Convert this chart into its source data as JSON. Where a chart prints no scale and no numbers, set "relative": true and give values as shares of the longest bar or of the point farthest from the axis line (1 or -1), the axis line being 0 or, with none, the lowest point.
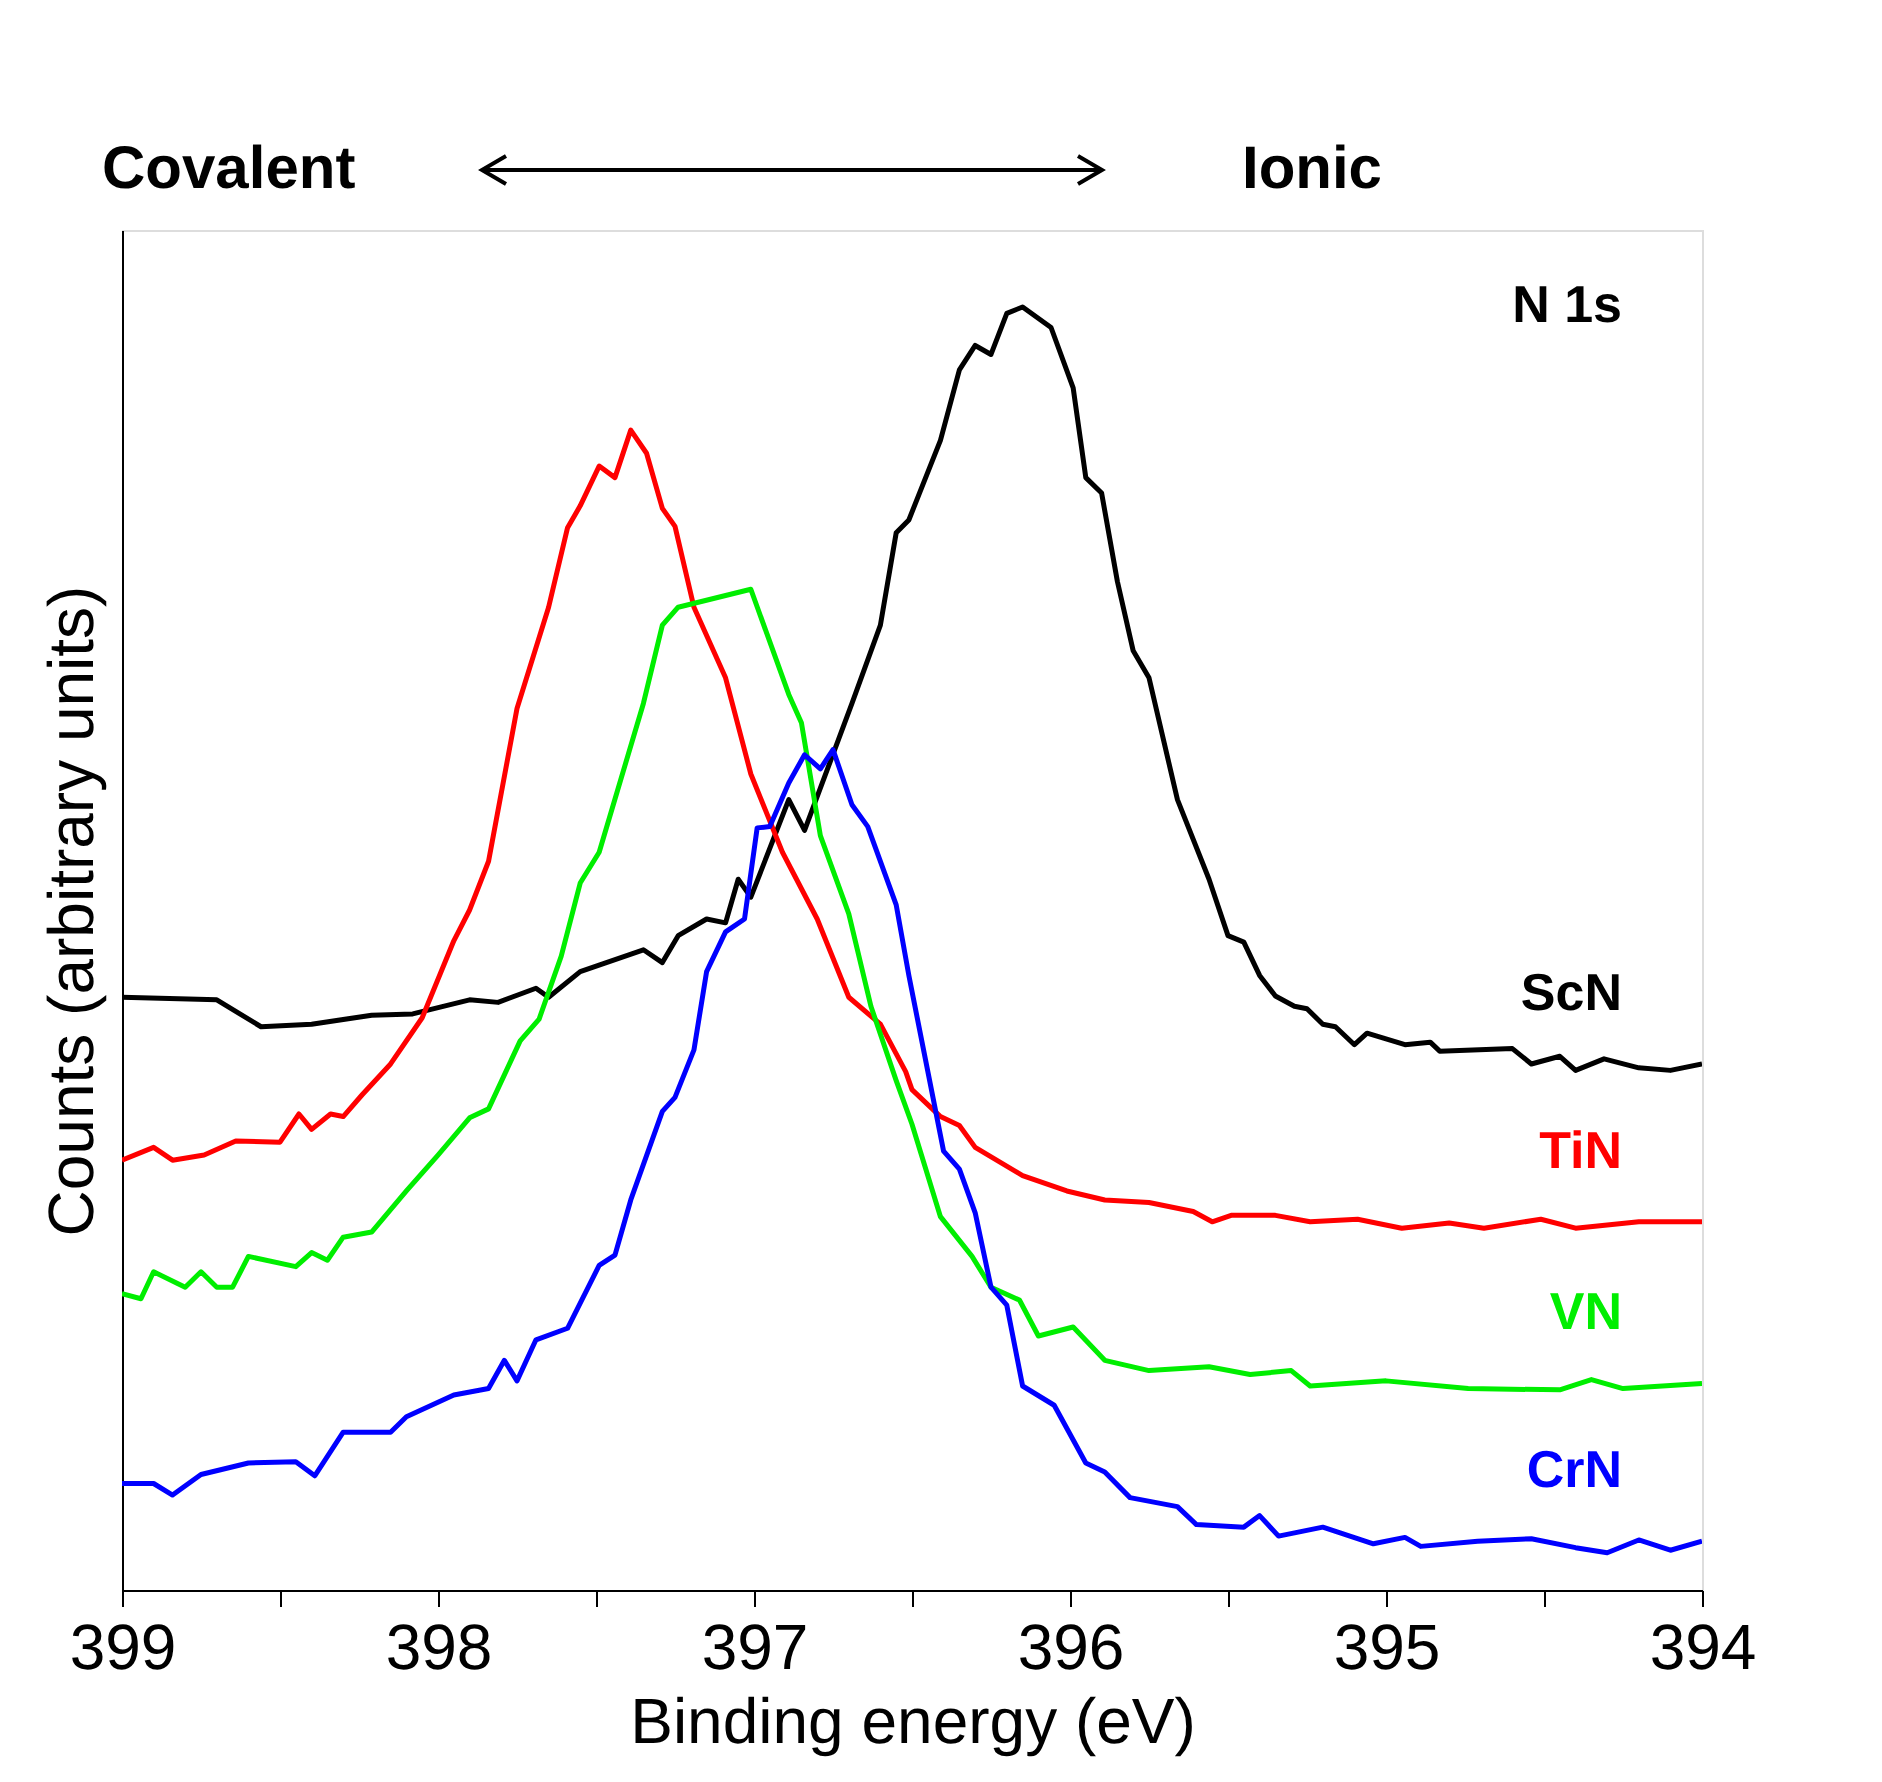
{
  "chart_data": {
    "type": "line",
    "relative": true,
    "xlabel": "Binding energy (eV)",
    "ylabel": "Counts (arbitrary units)",
    "annotations": [
      "Covalent",
      "Ionic",
      "N 1s"
    ],
    "xlim": [
      399,
      394
    ],
    "xticks": [
      399,
      {
        "value": 398.5,
        "label": null
      },
      398,
      {
        "value": 397.5,
        "label": null
      },
      397,
      {
        "value": 396.5,
        "label": null
      },
      396,
      {
        "value": 395.5,
        "label": null
      },
      395,
      {
        "value": 394.5,
        "label": null
      },
      394
    ],
    "grid": false,
    "marker": "none",
    "line_style": "solid",
    "series": [
      {
        "name": "ScN",
        "color": "#000000",
        "x": [
          399.0,
          398.7,
          398.56,
          398.4,
          398.21,
          398.08,
          397.9,
          397.81,
          397.69,
          397.65,
          397.55,
          397.35,
          397.29,
          397.24,
          397.15,
          397.09,
          397.05,
          397.01,
          396.89,
          396.84,
          396.69,
          396.6,
          396.55,
          396.51,
          396.41,
          396.35,
          396.3,
          396.25,
          396.2,
          396.15,
          396.06,
          395.99,
          395.95,
          395.9,
          395.85,
          395.8,
          395.75,
          395.66,
          395.56,
          395.5,
          395.45,
          395.4,
          395.35,
          395.29,
          395.25,
          395.2,
          395.16,
          395.1,
          395.06,
          394.94,
          394.86,
          394.83,
          394.6,
          394.54,
          394.45,
          394.4,
          394.31,
          394.2,
          394.1,
          394.0
        ],
        "values": [
          0.462,
          0.46,
          0.439,
          0.441,
          0.448,
          0.449,
          0.46,
          0.458,
          0.469,
          0.462,
          0.482,
          0.499,
          0.489,
          0.51,
          0.523,
          0.52,
          0.554,
          0.54,
          0.616,
          0.592,
          0.691,
          0.752,
          0.824,
          0.834,
          0.896,
          0.951,
          0.97,
          0.963,
          0.995,
          1.0,
          0.984,
          0.937,
          0.867,
          0.855,
          0.786,
          0.732,
          0.711,
          0.616,
          0.554,
          0.51,
          0.505,
          0.479,
          0.463,
          0.455,
          0.453,
          0.441,
          0.439,
          0.425,
          0.434,
          0.425,
          0.427,
          0.42,
          0.422,
          0.41,
          0.416,
          0.405,
          0.414,
          0.407,
          0.405,
          0.41
        ]
      },
      {
        "name": "TiN",
        "color": "#ff0000",
        "x": [
          399.0,
          398.9,
          398.84,
          398.74,
          398.64,
          398.5,
          398.44,
          398.4,
          398.34,
          398.3,
          398.24,
          398.15,
          398.05,
          397.95,
          397.9,
          397.84,
          397.75,
          397.65,
          397.59,
          397.55,
          397.49,
          397.44,
          397.39,
          397.34,
          397.29,
          397.25,
          397.19,
          397.09,
          397.01,
          396.91,
          396.8,
          396.7,
          396.6,
          396.52,
          396.5,
          396.41,
          396.35,
          396.3,
          396.15,
          396.01,
          395.89,
          395.75,
          395.61,
          395.55,
          395.49,
          395.35,
          395.24,
          395.09,
          394.95,
          394.8,
          394.69,
          394.51,
          394.4,
          394.2,
          394.0
        ],
        "values": [
          0.335,
          0.345,
          0.335,
          0.339,
          0.35,
          0.349,
          0.371,
          0.359,
          0.371,
          0.369,
          0.386,
          0.41,
          0.446,
          0.506,
          0.53,
          0.568,
          0.687,
          0.766,
          0.828,
          0.845,
          0.876,
          0.867,
          0.904,
          0.886,
          0.843,
          0.829,
          0.766,
          0.711,
          0.636,
          0.575,
          0.523,
          0.462,
          0.441,
          0.404,
          0.39,
          0.369,
          0.362,
          0.345,
          0.323,
          0.311,
          0.304,
          0.302,
          0.295,
          0.287,
          0.292,
          0.292,
          0.287,
          0.289,
          0.282,
          0.286,
          0.282,
          0.289,
          0.282,
          0.287,
          0.287
        ]
      },
      {
        "name": "VN",
        "color": "#00ee00",
        "x": [
          399.0,
          398.94,
          398.9,
          398.8,
          398.75,
          398.7,
          398.65,
          398.6,
          398.45,
          398.4,
          398.35,
          398.3,
          398.21,
          398.1,
          398.0,
          397.9,
          397.84,
          397.74,
          397.68,
          397.61,
          397.55,
          397.49,
          397.35,
          397.29,
          397.24,
          397.01,
          396.89,
          396.85,
          396.79,
          396.7,
          396.63,
          396.55,
          396.5,
          396.41,
          396.31,
          396.25,
          396.16,
          396.1,
          395.99,
          395.89,
          395.75,
          395.56,
          395.43,
          395.3,
          395.24,
          395.0,
          394.74,
          394.45,
          394.35,
          394.25,
          394.0
        ],
        "values": [
          0.231,
          0.227,
          0.248,
          0.236,
          0.248,
          0.236,
          0.236,
          0.26,
          0.252,
          0.263,
          0.257,
          0.275,
          0.279,
          0.311,
          0.339,
          0.368,
          0.375,
          0.428,
          0.445,
          0.494,
          0.551,
          0.575,
          0.691,
          0.752,
          0.766,
          0.78,
          0.698,
          0.676,
          0.588,
          0.527,
          0.455,
          0.397,
          0.363,
          0.291,
          0.26,
          0.236,
          0.226,
          0.198,
          0.205,
          0.179,
          0.171,
          0.174,
          0.168,
          0.171,
          0.159,
          0.163,
          0.157,
          0.156,
          0.164,
          0.157,
          0.161
        ]
      },
      {
        "name": "CrN",
        "color": "#0000ff",
        "x": [
          399.0,
          398.9,
          398.84,
          398.75,
          398.6,
          398.45,
          398.39,
          398.3,
          398.15,
          398.1,
          397.95,
          397.84,
          397.79,
          397.75,
          397.69,
          397.59,
          397.49,
          397.44,
          397.39,
          397.29,
          397.25,
          397.19,
          397.15,
          397.09,
          397.03,
          396.99,
          396.95,
          396.89,
          396.84,
          396.79,
          396.75,
          396.69,
          396.64,
          396.55,
          396.51,
          396.4,
          396.35,
          396.3,
          396.25,
          396.2,
          396.15,
          396.05,
          395.95,
          395.89,
          395.81,
          395.66,
          395.6,
          395.45,
          395.4,
          395.34,
          395.2,
          395.04,
          394.94,
          394.89,
          394.71,
          394.54,
          394.4,
          394.3,
          394.2,
          394.1,
          394.0
        ],
        "values": [
          0.083,
          0.083,
          0.074,
          0.09,
          0.099,
          0.1,
          0.089,
          0.123,
          0.123,
          0.135,
          0.152,
          0.157,
          0.179,
          0.163,
          0.195,
          0.204,
          0.253,
          0.261,
          0.304,
          0.373,
          0.384,
          0.421,
          0.482,
          0.513,
          0.523,
          0.594,
          0.595,
          0.629,
          0.651,
          0.64,
          0.655,
          0.612,
          0.595,
          0.534,
          0.479,
          0.342,
          0.328,
          0.294,
          0.236,
          0.222,
          0.159,
          0.144,
          0.099,
          0.092,
          0.072,
          0.065,
          0.051,
          0.049,
          0.058,
          0.042,
          0.049,
          0.036,
          0.041,
          0.034,
          0.038,
          0.04,
          0.033,
          0.029,
          0.039,
          0.031,
          0.038
        ]
      }
    ]
  }
}
